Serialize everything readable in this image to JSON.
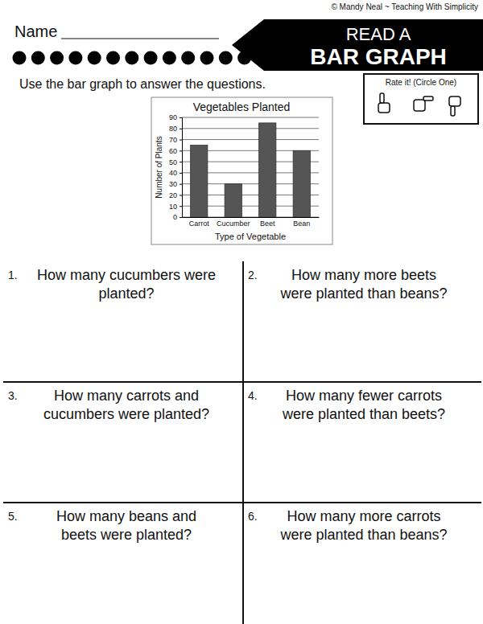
{
  "header": {
    "copyright": "© Mandy Neal ~ Teaching With Simplicity",
    "name_label": "Name",
    "banner": [
      "READ A",
      "BAR GRAPH"
    ],
    "instructions": "Use the bar graph to answer the questions.",
    "rating": "Rate it! (Circle One)"
  },
  "chart_data": {
    "type": "bar",
    "title": "Vegetables Planted",
    "x_label": "Type of Vegetable",
    "y_label": "Number of Plants",
    "categories": [
      "Carrot",
      "Cucumber",
      "Beet",
      "Bean"
    ],
    "values": [
      65,
      30,
      85,
      60
    ],
    "color": "#555555",
    "ylim": [
      0,
      90
    ],
    "yticks": [
      0,
      10,
      20,
      30,
      40,
      50,
      60,
      70,
      80,
      90
    ],
    "grid": true
  },
  "questions": [
    {
      "number": "1.",
      "lines": [
        "How many cucumbers were",
        "planted?"
      ]
    },
    {
      "number": "2.",
      "lines": [
        "How many more beets",
        "were planted than beans?"
      ]
    },
    {
      "number": "3.",
      "lines": [
        "How many carrots and",
        "cucumbers were planted?"
      ]
    },
    {
      "number": "4.",
      "lines": [
        "How many fewer carrots",
        "were planted than beets?"
      ]
    },
    {
      "number": "5.",
      "lines": [
        "How many beans and",
        "beets were planted?"
      ]
    },
    {
      "number": "6.",
      "lines": [
        "How many more carrots",
        "were planted than beans?"
      ]
    }
  ]
}
